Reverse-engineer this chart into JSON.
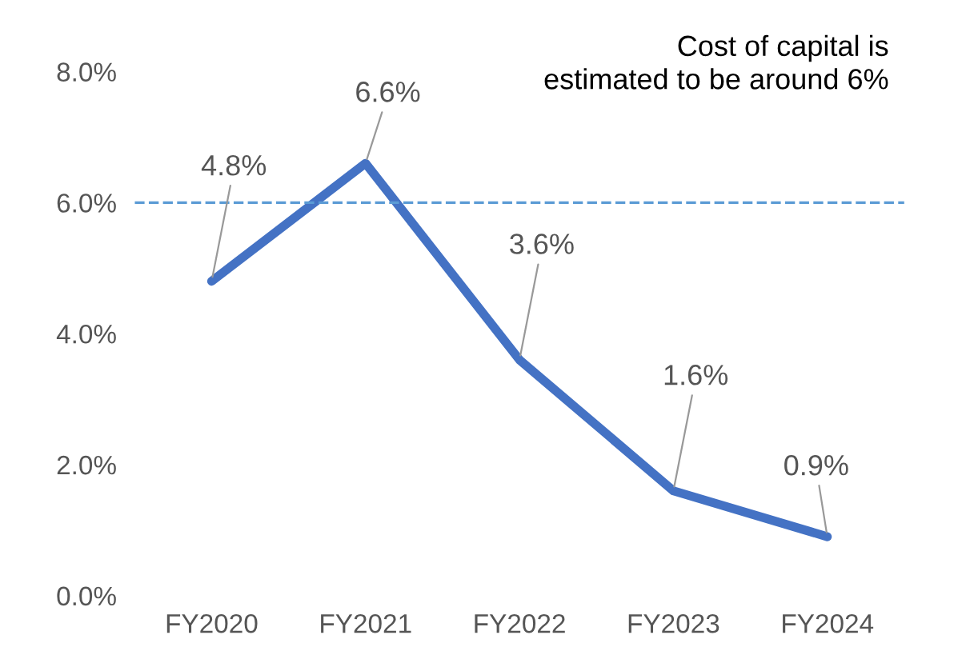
{
  "chart_data": {
    "type": "line",
    "categories": [
      "FY2020",
      "FY2021",
      "FY2022",
      "FY2023",
      "FY2024"
    ],
    "series": [
      {
        "color": "#4472c4",
        "values": [
          4.8,
          6.6,
          3.6,
          1.6,
          0.9
        ]
      }
    ],
    "value_labels": [
      "4.8%",
      "6.6%",
      "3.6%",
      "1.6%",
      "0.9%"
    ],
    "ylim": [
      0,
      8
    ],
    "yticks": [
      {
        "value": 0,
        "label": "0.0%"
      },
      {
        "value": 2,
        "label": "2.0%"
      },
      {
        "value": 4,
        "label": "4.0%"
      },
      {
        "value": 6,
        "label": "6.0%"
      },
      {
        "value": 8,
        "label": "8.0%"
      }
    ],
    "ref_lines": [
      {
        "axis": "y",
        "value": 6,
        "color": "#5b9bd5",
        "line_style": "dashed"
      }
    ],
    "annotations": [
      "Cost of capital is\nestimated to be around 6%"
    ],
    "grid": false,
    "legend": false,
    "marker": "none",
    "line_style": "solid"
  }
}
